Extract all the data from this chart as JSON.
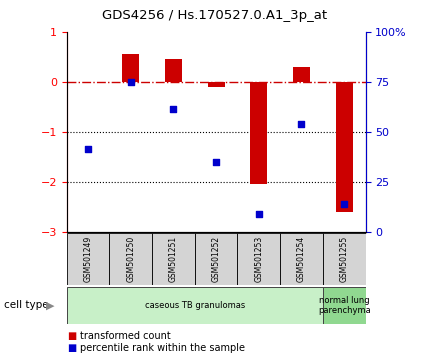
{
  "title": "GDS4256 / Hs.170527.0.A1_3p_at",
  "samples": [
    "GSM501249",
    "GSM501250",
    "GSM501251",
    "GSM501252",
    "GSM501253",
    "GSM501254",
    "GSM501255"
  ],
  "bar_values": [
    0.0,
    0.55,
    0.45,
    -0.1,
    -2.05,
    0.3,
    -2.6
  ],
  "dot_values": [
    -1.35,
    0.0,
    -0.55,
    -1.6,
    -2.65,
    -0.85,
    -2.45
  ],
  "bar_color": "#cc0000",
  "dot_color": "#0000cc",
  "ref_line_color": "#cc0000",
  "ylim": [
    -3.0,
    1.0
  ],
  "yticks_left": [
    1,
    0,
    -1,
    -2,
    -3
  ],
  "right_tick_positions": [
    1,
    0,
    -1,
    -2,
    -3
  ],
  "right_tick_labels": [
    "100%",
    "75",
    "50",
    "25",
    "0"
  ],
  "right_label_color": "#0000cc",
  "group_boundaries": [
    {
      "start": 0,
      "end": 5,
      "label": "caseous TB granulomas",
      "color": "#c8f0c8"
    },
    {
      "start": 6,
      "end": 6,
      "label": "normal lung\nparenchyma",
      "color": "#90d890"
    }
  ],
  "legend_items": [
    {
      "color": "#cc0000",
      "label": "transformed count"
    },
    {
      "color": "#0000cc",
      "label": "percentile rank within the sample"
    }
  ],
  "cell_type_label": "cell type",
  "bar_width": 0.4,
  "sample_box_color": "#d4d4d4",
  "fig_bg": "#ffffff"
}
